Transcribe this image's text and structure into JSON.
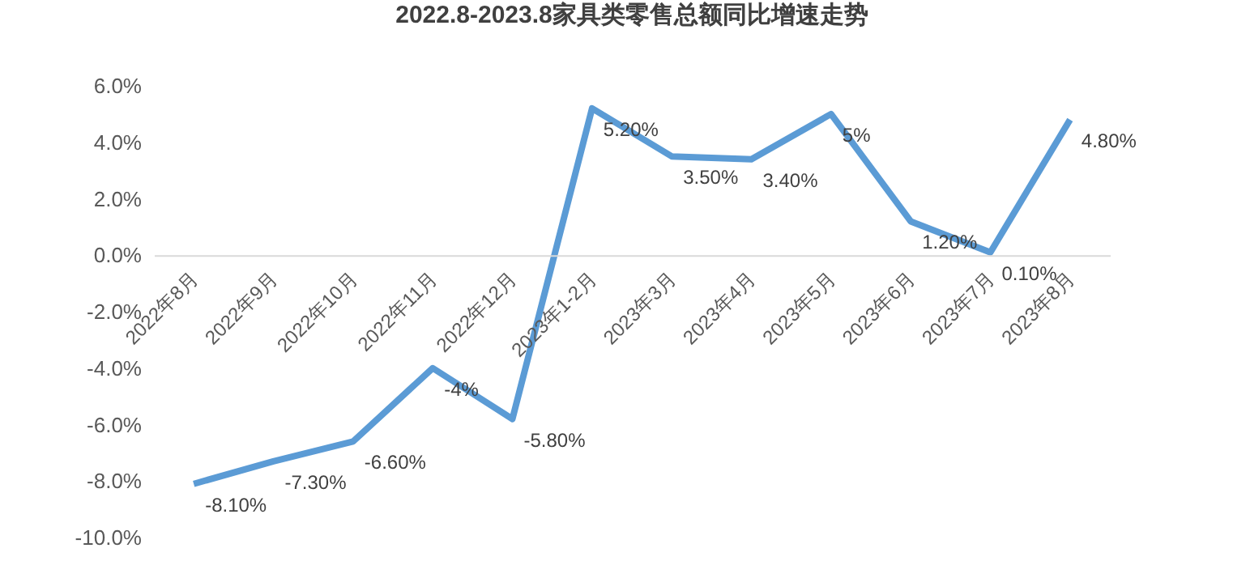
{
  "chart_data": {
    "type": "line",
    "title": "2022.8-2023.8家具类零售总额同比增速走势",
    "categories": [
      "2022年8月",
      "2022年9月",
      "2022年10月",
      "2022年11月",
      "2022年12月",
      "2023年1-2月",
      "2023年3月",
      "2023年4月",
      "2023年5月",
      "2023年6月",
      "2023年7月",
      "2023年8月"
    ],
    "series": [
      {
        "color": "#5b9bd5",
        "values": [
          -8.1,
          -7.3,
          -6.6,
          -4,
          -5.8,
          5.2,
          3.5,
          3.4,
          5,
          1.2,
          0.1,
          4.8
        ],
        "value_labels": [
          "-8.10%",
          "-7.30%",
          "-6.60%",
          "-4%",
          "-5.80%",
          "5.20%",
          "3.50%",
          "3.40%",
          "5%",
          "1.20%",
          "0.10%",
          "4.80%"
        ]
      }
    ],
    "ylim": [
      -10,
      6
    ],
    "yticks": [
      {
        "value": -10,
        "label": "-10.0%"
      },
      {
        "value": -8,
        "label": "-8.0%"
      },
      {
        "value": -6,
        "label": "-6.0%"
      },
      {
        "value": -4,
        "label": "-4.0%"
      },
      {
        "value": -2,
        "label": "-2.0%"
      },
      {
        "value": 0,
        "label": "0.0%"
      },
      {
        "value": 2,
        "label": "2.0%"
      },
      {
        "value": 4,
        "label": "4.0%"
      },
      {
        "value": 6,
        "label": "6.0%"
      }
    ],
    "grid": false,
    "marker": "none",
    "line_style": "solid"
  }
}
